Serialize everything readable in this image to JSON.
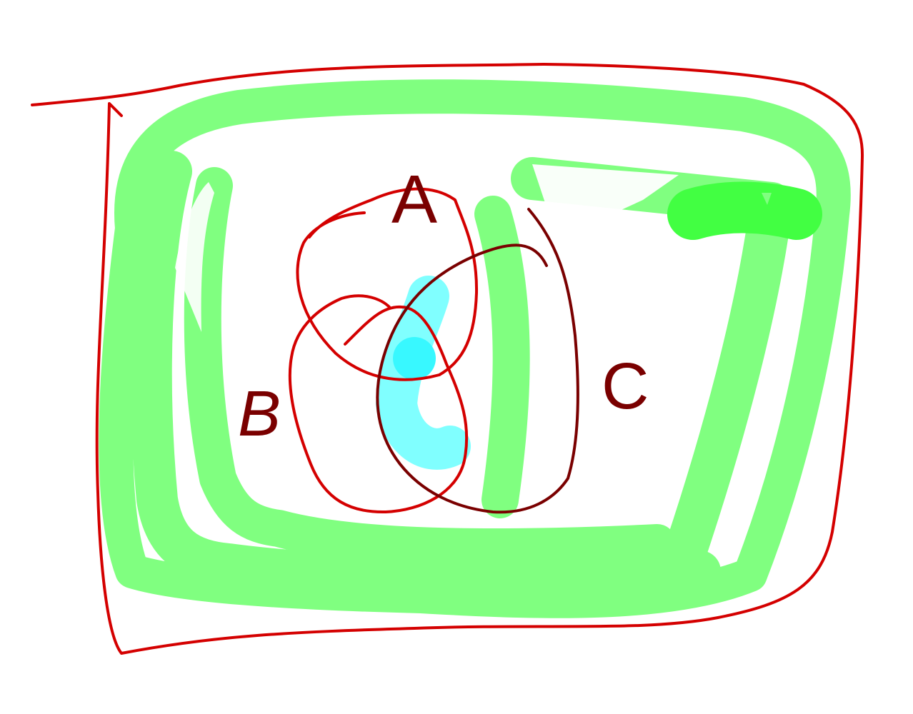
{
  "diagram": {
    "set_labels": {
      "a": "A",
      "b": "B",
      "c": "C"
    },
    "colors": {
      "background": "#ffffff",
      "universe_outline": "#d40000",
      "set_outline": "#d40000",
      "set_c_outline": "#7a0000",
      "label_ink": "#7a0000",
      "complement_highlight": "#80ff80",
      "dark_green_mark": "#42ff42",
      "intersection_highlight": "#80ffff",
      "intersection_highlight_dark": "#38f8ff"
    }
  }
}
